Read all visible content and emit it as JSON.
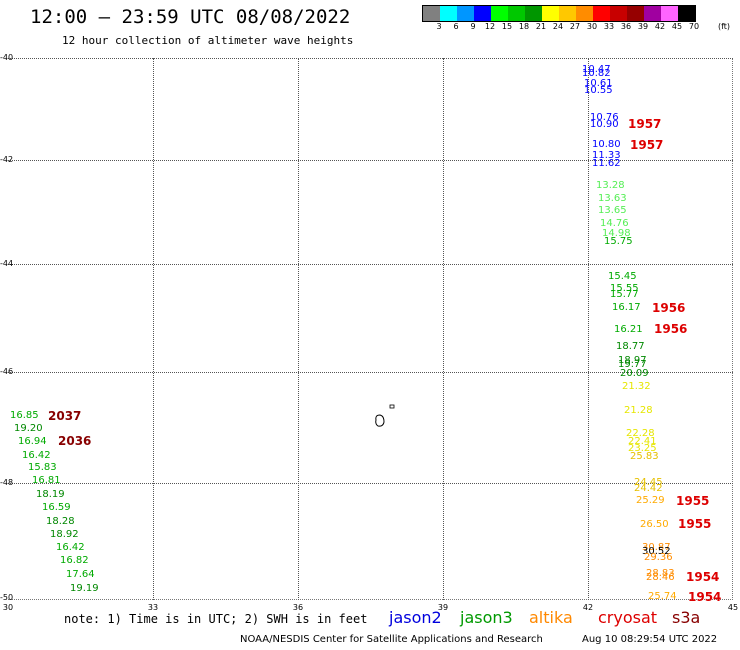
{
  "header": {
    "title": "12:00 — 23:59 UTC 08/08/2022",
    "subtitle": "12 hour collection of altimeter wave heights"
  },
  "legend": {
    "unit": "(ft)",
    "colors": [
      "#808080",
      "#00ffff",
      "#0096ff",
      "#0000ff",
      "#00ff00",
      "#00c800",
      "#009600",
      "#ffff00",
      "#ffc800",
      "#ff8c00",
      "#ff0000",
      "#c80000",
      "#960000",
      "#a000a0",
      "#ff64ff",
      "#000000"
    ],
    "labels": [
      "3",
      "6",
      "9",
      "12",
      "15",
      "18",
      "21",
      "24",
      "27",
      "30",
      "33",
      "36",
      "39",
      "42",
      "45",
      "70"
    ]
  },
  "axes": {
    "lat_labels": [
      "-40",
      "-42",
      "-44",
      "-46",
      "-48",
      "-50"
    ],
    "lon_labels": [
      "30",
      "33",
      "36",
      "39",
      "42",
      "45"
    ]
  },
  "observations": [
    {
      "v": "10.47",
      "c": "#0000ff"
    },
    {
      "v": "10.82",
      "c": "#0000ff"
    },
    {
      "v": "10.61",
      "c": "#0000ff"
    },
    {
      "v": "10.55",
      "c": "#0000ff"
    },
    {
      "v": "10.76",
      "c": "#0000ff"
    },
    {
      "v": "10.90",
      "c": "#0000ff"
    },
    {
      "v": "10.80",
      "c": "#0000ff"
    },
    {
      "v": "11.33",
      "c": "#0000ff"
    },
    {
      "v": "11.62",
      "c": "#0000ff"
    },
    {
      "v": "13.28",
      "c": "#55ee55"
    },
    {
      "v": "13.63",
      "c": "#55ee55"
    },
    {
      "v": "13.65",
      "c": "#55ee55"
    },
    {
      "v": "14.76",
      "c": "#55ee55"
    },
    {
      "v": "14.98",
      "c": "#55ee55"
    },
    {
      "v": "15.75",
      "c": "#00aa00"
    },
    {
      "v": "15.45",
      "c": "#00aa00"
    },
    {
      "v": "15.55",
      "c": "#00aa00"
    },
    {
      "v": "15.77",
      "c": "#00aa00"
    },
    {
      "v": "16.17",
      "c": "#00aa00"
    },
    {
      "v": "16.21",
      "c": "#00aa00"
    },
    {
      "v": "18.77",
      "c": "#008800"
    },
    {
      "v": "18.97",
      "c": "#008800"
    },
    {
      "v": "19.77",
      "c": "#008800"
    },
    {
      "v": "20.09",
      "c": "#008800"
    },
    {
      "v": "21.32",
      "c": "#e6e600"
    },
    {
      "v": "21.28",
      "c": "#e6e600"
    },
    {
      "v": "22.28",
      "c": "#e6e600"
    },
    {
      "v": "22.41",
      "c": "#e6e600"
    },
    {
      "v": "23.25",
      "c": "#e6e600"
    },
    {
      "v": "25.83",
      "c": "#e6c000"
    },
    {
      "v": "24.45",
      "c": "#e6c000"
    },
    {
      "v": "24.42",
      "c": "#e6c000"
    },
    {
      "v": "25.29",
      "c": "#ffaa00"
    },
    {
      "v": "26.50",
      "c": "#ffaa00"
    },
    {
      "v": "30.87",
      "c": "#ff8c00"
    },
    {
      "v": "30.52",
      "c": "#000000"
    },
    {
      "v": "29.36",
      "c": "#ff8c00"
    },
    {
      "v": "28.83",
      "c": "#ff8c00"
    },
    {
      "v": "28.46",
      "c": "#ff8c00"
    },
    {
      "v": "25.74",
      "c": "#ffaa00"
    },
    {
      "v": "16.85",
      "c": "#00aa00"
    },
    {
      "v": "19.20",
      "c": "#008800"
    },
    {
      "v": "16.94",
      "c": "#00aa00"
    },
    {
      "v": "16.42",
      "c": "#00aa00"
    },
    {
      "v": "15.83",
      "c": "#00aa00"
    },
    {
      "v": "16.81",
      "c": "#00aa00"
    },
    {
      "v": "18.19",
      "c": "#008800"
    },
    {
      "v": "16.59",
      "c": "#00aa00"
    },
    {
      "v": "18.28",
      "c": "#008800"
    },
    {
      "v": "18.92",
      "c": "#008800"
    },
    {
      "v": "16.42",
      "c": "#00aa00"
    },
    {
      "v": "16.82",
      "c": "#00aa00"
    },
    {
      "v": "17.64",
      "c": "#00aa00"
    },
    {
      "v": "19.19",
      "c": "#008800"
    }
  ],
  "times": [
    {
      "t": "1957",
      "c": "#dd0000"
    },
    {
      "t": "1957",
      "c": "#dd0000"
    },
    {
      "t": "1956",
      "c": "#dd0000"
    },
    {
      "t": "1956",
      "c": "#dd0000"
    },
    {
      "t": "1955",
      "c": "#dd0000"
    },
    {
      "t": "1955",
      "c": "#dd0000"
    },
    {
      "t": "1954",
      "c": "#dd0000"
    },
    {
      "t": "1954",
      "c": "#dd0000"
    },
    {
      "t": "2037",
      "c": "#880000"
    },
    {
      "t": "2036",
      "c": "#880000"
    }
  ],
  "footer": {
    "note": "note: 1) Time is in UTC; 2) SWH is in feet",
    "satellites": [
      {
        "name": "jason2",
        "color": "#0000dd"
      },
      {
        "name": "jason3",
        "color": "#009900"
      },
      {
        "name": "altika",
        "color": "#ff8800"
      },
      {
        "name": "cryosat",
        "color": "#dd0000"
      },
      {
        "name": "s3a",
        "color": "#880000"
      }
    ],
    "credit": "NOAA/NESDIS Center for Satellite Applications and Research",
    "date": "Aug 10 08:29:54 UTC 2022"
  }
}
